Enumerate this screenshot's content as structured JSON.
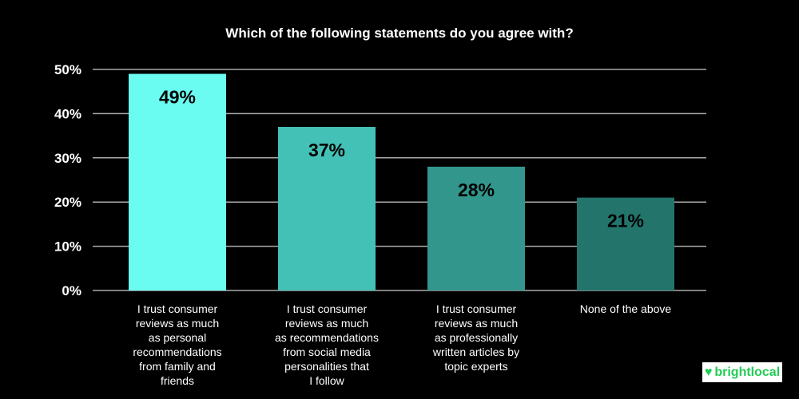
{
  "chart_data": {
    "type": "bar",
    "title": "Which of the following statements do you agree with?",
    "categories": [
      "I trust consumer reviews as much as personal recommendations from family and friends",
      "I trust consumer reviews as much as recommendations from social media personalities that I follow",
      "I trust consumer reviews as much as professionally written articles by topic experts",
      "None of the above"
    ],
    "category_lines": [
      [
        "I trust consumer",
        "reviews as much",
        "as personal",
        "recommendations",
        "from family and",
        "friends"
      ],
      [
        "I trust consumer",
        "reviews as much",
        "as recommendations",
        "from social media",
        "personalities that",
        "I follow"
      ],
      [
        "I trust consumer",
        "reviews as much",
        "as professionally",
        "written articles by",
        "topic experts"
      ],
      [
        "None of the above"
      ]
    ],
    "values": [
      49,
      37,
      28,
      21
    ],
    "data_labels": [
      "49%",
      "37%",
      "28%",
      "21%"
    ],
    "colors": [
      "#6afcf0",
      "#44c1b6",
      "#32968c",
      "#23756c"
    ],
    "ylim": [
      0,
      50
    ],
    "yticks": [
      "0%",
      "10%",
      "20%",
      "30%",
      "40%",
      "50%"
    ],
    "grid": true,
    "xlabel": "",
    "ylabel": ""
  },
  "logo": {
    "text": "brightlocal",
    "color": "#22cc55"
  }
}
